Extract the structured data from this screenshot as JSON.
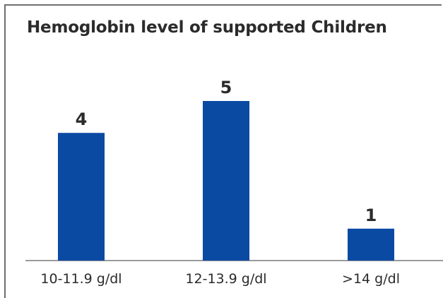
{
  "chart_data": {
    "type": "bar",
    "title": "Hemoglobin level of supported Children",
    "categories": [
      "10-11.9 g/dl",
      "12-13.9 g/dl",
      ">14 g/dl"
    ],
    "values": [
      4,
      5,
      1
    ],
    "xlabel": "",
    "ylabel": "",
    "ylim": [
      0,
      5
    ],
    "grid": false,
    "legend": "none",
    "bar_color": "#0b4aa2"
  }
}
